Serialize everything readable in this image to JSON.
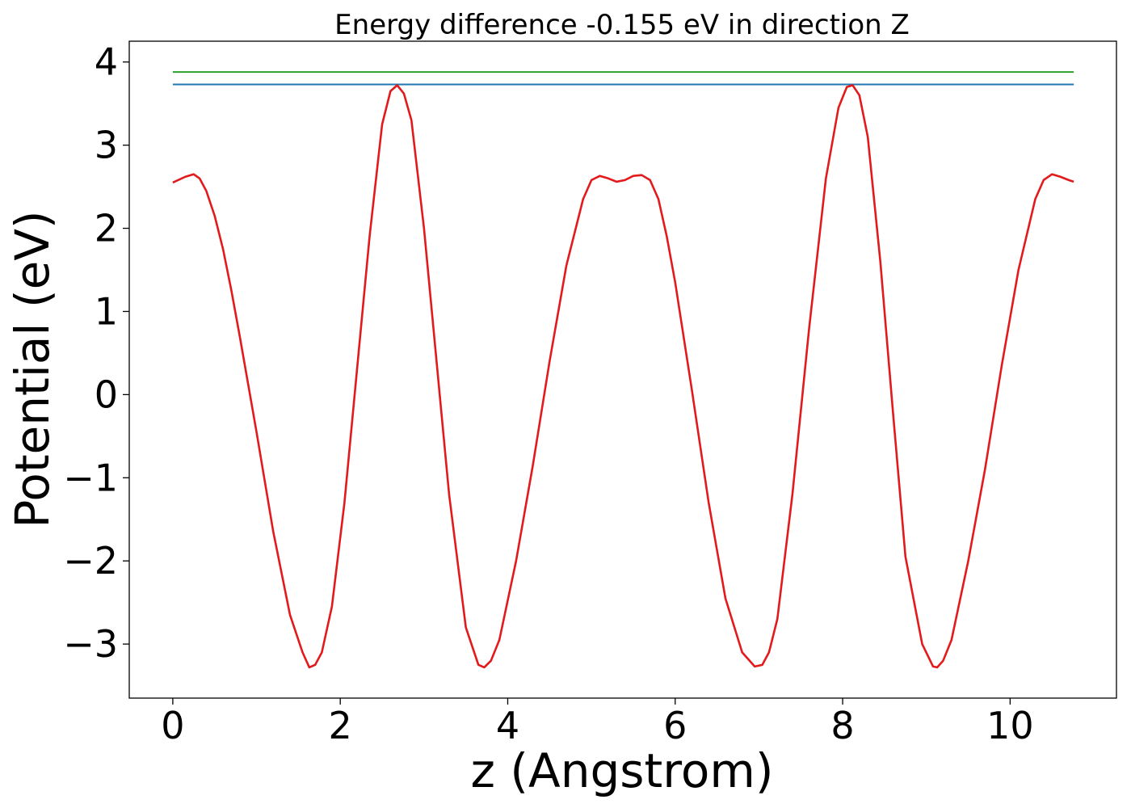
{
  "chart_data": {
    "type": "line",
    "title": "Energy difference -0.155 eV in direction Z",
    "xlabel": "z (Angstrom)",
    "ylabel": "Potential (eV)",
    "xlim": [
      -0.52,
      11.27
    ],
    "ylim": [
      -3.65,
      4.25
    ],
    "xticks": [
      0,
      2,
      4,
      6,
      8,
      10
    ],
    "xtick_labels": [
      "0",
      "2",
      "4",
      "6",
      "8",
      "10"
    ],
    "yticks": [
      -3,
      -2,
      -1,
      0,
      1,
      2,
      3,
      4
    ],
    "ytick_labels": [
      "−3",
      "−2",
      "−1",
      "0",
      "1",
      "2",
      "3",
      "4"
    ],
    "grid": false,
    "series": [
      {
        "color": "#2ca02c",
        "x": [
          0,
          10.76
        ],
        "y": [
          3.88,
          3.88
        ]
      },
      {
        "color": "#1f77b4",
        "x": [
          0,
          10.76
        ],
        "y": [
          3.73,
          3.73
        ]
      },
      {
        "color": "#e31a1c",
        "x": [
          0.0,
          0.15,
          0.25,
          0.32,
          0.4,
          0.5,
          0.6,
          0.7,
          0.8,
          1.0,
          1.2,
          1.4,
          1.55,
          1.63,
          1.7,
          1.78,
          1.9,
          2.05,
          2.2,
          2.35,
          2.5,
          2.6,
          2.68,
          2.76,
          2.85,
          3.0,
          3.15,
          3.3,
          3.5,
          3.65,
          3.72,
          3.8,
          3.9,
          4.1,
          4.3,
          4.5,
          4.7,
          4.9,
          5.0,
          5.1,
          5.2,
          5.3,
          5.4,
          5.5,
          5.6,
          5.7,
          5.8,
          5.9,
          6.0,
          6.2,
          6.4,
          6.6,
          6.8,
          6.95,
          7.04,
          7.12,
          7.22,
          7.4,
          7.6,
          7.8,
          7.95,
          8.05,
          8.12,
          8.2,
          8.3,
          8.45,
          8.6,
          8.75,
          8.95,
          9.08,
          9.13,
          9.2,
          9.3,
          9.5,
          9.7,
          9.9,
          10.1,
          10.3,
          10.4,
          10.5,
          10.6,
          10.7,
          10.76
        ],
        "y": [
          2.55,
          2.62,
          2.65,
          2.6,
          2.45,
          2.15,
          1.75,
          1.25,
          0.7,
          -0.45,
          -1.65,
          -2.65,
          -3.1,
          -3.28,
          -3.25,
          -3.1,
          -2.55,
          -1.3,
          0.3,
          1.9,
          3.25,
          3.65,
          3.72,
          3.62,
          3.3,
          2.0,
          0.4,
          -1.2,
          -2.8,
          -3.25,
          -3.28,
          -3.2,
          -2.95,
          -2.0,
          -0.85,
          0.4,
          1.55,
          2.35,
          2.58,
          2.63,
          2.6,
          2.56,
          2.58,
          2.63,
          2.64,
          2.58,
          2.35,
          1.9,
          1.35,
          0.05,
          -1.3,
          -2.45,
          -3.1,
          -3.27,
          -3.25,
          -3.1,
          -2.7,
          -1.2,
          0.8,
          2.6,
          3.45,
          3.7,
          3.72,
          3.6,
          3.1,
          1.6,
          -0.2,
          -1.95,
          -3.0,
          -3.27,
          -3.28,
          -3.2,
          -2.95,
          -2.0,
          -0.9,
          0.35,
          1.5,
          2.35,
          2.58,
          2.65,
          2.62,
          2.58,
          2.56
        ]
      }
    ]
  }
}
